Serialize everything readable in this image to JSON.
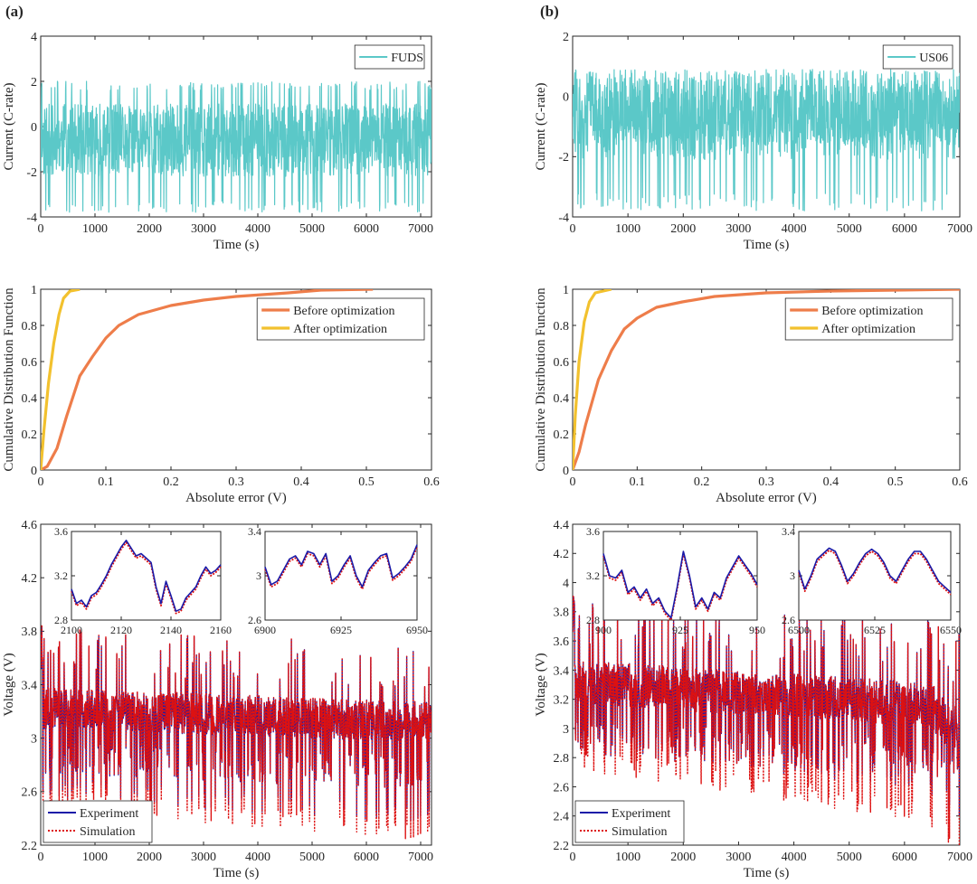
{
  "panel_labels": [
    "(a)",
    "(b)"
  ],
  "colors": {
    "current": "#5bc8c8",
    "before": "#ee7d4a",
    "after": "#f2c12e",
    "experiment": "#1a1aa8",
    "simulation": "#dd1111",
    "axis": "#262626"
  },
  "chart_data": [
    {
      "id": "a-current",
      "type": "line",
      "ylabel": "Current (C-rate)",
      "xlabel": "Time (s)",
      "xlim": [
        0,
        7200
      ],
      "ylim": [
        -4,
        4
      ],
      "xticks": [
        0,
        1000,
        2000,
        3000,
        4000,
        5000,
        6000,
        7000
      ],
      "yticks": [
        -4,
        -2,
        0,
        2,
        4
      ],
      "legend": "top-right",
      "series": [
        {
          "name": "FUDS",
          "profile": "FUDS",
          "range": [
            -3.8,
            2.0
          ],
          "mean": -0.25
        }
      ]
    },
    {
      "id": "b-current",
      "type": "line",
      "ylabel": "Current (C-rate)",
      "xlabel": "Time (s)",
      "xlim": [
        0,
        7000
      ],
      "ylim": [
        -4,
        2
      ],
      "xticks": [
        0,
        1000,
        2000,
        3000,
        4000,
        5000,
        6000,
        7000
      ],
      "yticks": [
        -4,
        -2,
        0,
        2
      ],
      "legend": "top-right",
      "series": [
        {
          "name": "US06",
          "profile": "US06",
          "range": [
            -3.8,
            0.9
          ],
          "mean": -0.5
        }
      ]
    },
    {
      "id": "a-cdf",
      "type": "line",
      "ylabel": "Cumulative Distribution Function",
      "xlabel": "Absolute error (V)",
      "xlim": [
        0,
        0.6
      ],
      "ylim": [
        0,
        1
      ],
      "xticks": [
        0,
        0.1,
        0.2,
        0.3,
        0.4,
        0.5,
        0.6
      ],
      "yticks": [
        0,
        0.2,
        0.4,
        0.6,
        0.8,
        1
      ],
      "legend": "top-right",
      "series": [
        {
          "name": "Before optimization",
          "points": [
            [
              0,
              0
            ],
            [
              0.01,
              0.02
            ],
            [
              0.025,
              0.12
            ],
            [
              0.04,
              0.3
            ],
            [
              0.06,
              0.52
            ],
            [
              0.08,
              0.63
            ],
            [
              0.1,
              0.73
            ],
            [
              0.12,
              0.8
            ],
            [
              0.15,
              0.86
            ],
            [
              0.2,
              0.91
            ],
            [
              0.25,
              0.94
            ],
            [
              0.3,
              0.96
            ],
            [
              0.38,
              0.98
            ],
            [
              0.43,
              0.995
            ],
            [
              0.51,
              1
            ]
          ]
        },
        {
          "name": "After optimization",
          "points": [
            [
              0,
              0
            ],
            [
              0.005,
              0.22
            ],
            [
              0.012,
              0.48
            ],
            [
              0.02,
              0.7
            ],
            [
              0.028,
              0.86
            ],
            [
              0.035,
              0.95
            ],
            [
              0.045,
              0.99
            ],
            [
              0.06,
              1
            ]
          ]
        }
      ]
    },
    {
      "id": "b-cdf",
      "type": "line",
      "ylabel": "Cumulative Distribution Function",
      "xlabel": "Absolute error (V)",
      "xlim": [
        0,
        0.6
      ],
      "ylim": [
        0,
        1
      ],
      "xticks": [
        0,
        0.1,
        0.2,
        0.3,
        0.4,
        0.5,
        0.6
      ],
      "yticks": [
        0,
        0.2,
        0.4,
        0.6,
        0.8,
        1
      ],
      "legend": "top-right",
      "series": [
        {
          "name": "Before optimization",
          "points": [
            [
              0,
              0
            ],
            [
              0.01,
              0.1
            ],
            [
              0.02,
              0.25
            ],
            [
              0.04,
              0.5
            ],
            [
              0.06,
              0.66
            ],
            [
              0.08,
              0.78
            ],
            [
              0.1,
              0.84
            ],
            [
              0.13,
              0.9
            ],
            [
              0.17,
              0.93
            ],
            [
              0.22,
              0.96
            ],
            [
              0.3,
              0.98
            ],
            [
              0.4,
              0.99
            ],
            [
              0.6,
              1
            ]
          ]
        },
        {
          "name": "After optimization",
          "points": [
            [
              0,
              0
            ],
            [
              0.004,
              0.3
            ],
            [
              0.01,
              0.6
            ],
            [
              0.018,
              0.82
            ],
            [
              0.026,
              0.93
            ],
            [
              0.035,
              0.98
            ],
            [
              0.06,
              1
            ]
          ]
        }
      ]
    },
    {
      "id": "a-voltage",
      "type": "line",
      "ylabel": "Voltage (V)",
      "xlabel": "Time (s)",
      "xlim": [
        0,
        7200
      ],
      "ylim": [
        2.2,
        4.6
      ],
      "xticks": [
        0,
        1000,
        2000,
        3000,
        4000,
        5000,
        6000,
        7000
      ],
      "yticks": [
        2.2,
        2.6,
        3,
        3.4,
        3.8,
        4.2,
        4.6
      ],
      "legend": "bottom-left",
      "series": [
        {
          "name": "Experiment",
          "profile": "FUDS",
          "upper": 3.32,
          "upper_end": 3.22,
          "lower": 2.55,
          "lower_end": 2.35
        },
        {
          "name": "Simulation",
          "profile": "FUDS",
          "upper": 3.36,
          "upper_end": 3.25,
          "lower": 2.5,
          "lower_end": 2.25
        }
      ],
      "insets": [
        {
          "xlim": [
            2100,
            2160
          ],
          "ylim": [
            2.8,
            3.6
          ],
          "xticks": [
            2100,
            2120,
            2140,
            2160
          ],
          "yticks": [
            2.8,
            3.2,
            3.6
          ],
          "points": [
            [
              2100,
              3.08
            ],
            [
              2102,
              2.95
            ],
            [
              2104,
              2.98
            ],
            [
              2106,
              2.92
            ],
            [
              2108,
              3.02
            ],
            [
              2110,
              3.05
            ],
            [
              2112,
              3.12
            ],
            [
              2114,
              3.2
            ],
            [
              2116,
              3.3
            ],
            [
              2118,
              3.38
            ],
            [
              2120,
              3.46
            ],
            [
              2122,
              3.52
            ],
            [
              2124,
              3.45
            ],
            [
              2126,
              3.38
            ],
            [
              2128,
              3.4
            ],
            [
              2130,
              3.36
            ],
            [
              2132,
              3.32
            ],
            [
              2134,
              3.1
            ],
            [
              2136,
              2.95
            ],
            [
              2138,
              3.15
            ],
            [
              2140,
              3.02
            ],
            [
              2142,
              2.88
            ],
            [
              2144,
              2.9
            ],
            [
              2146,
              3.0
            ],
            [
              2148,
              3.05
            ],
            [
              2150,
              3.1
            ],
            [
              2152,
              3.2
            ],
            [
              2154,
              3.28
            ],
            [
              2156,
              3.22
            ],
            [
              2158,
              3.25
            ],
            [
              2160,
              3.3
            ]
          ]
        },
        {
          "xlim": [
            6900,
            6950
          ],
          "ylim": [
            2.6,
            3.4
          ],
          "xticks": [
            6900,
            6925,
            6950
          ],
          "yticks": [
            2.6,
            3,
            3.4
          ],
          "points": [
            [
              6900,
              3.08
            ],
            [
              6902,
              2.92
            ],
            [
              6904,
              2.95
            ],
            [
              6906,
              3.05
            ],
            [
              6908,
              3.15
            ],
            [
              6910,
              3.18
            ],
            [
              6912,
              3.1
            ],
            [
              6914,
              3.22
            ],
            [
              6916,
              3.2
            ],
            [
              6918,
              3.1
            ],
            [
              6920,
              3.2
            ],
            [
              6922,
              2.95
            ],
            [
              6924,
              3.0
            ],
            [
              6926,
              3.1
            ],
            [
              6928,
              3.18
            ],
            [
              6930,
              3.0
            ],
            [
              6932,
              2.9
            ],
            [
              6934,
              3.05
            ],
            [
              6936,
              3.12
            ],
            [
              6938,
              3.18
            ],
            [
              6940,
              3.2
            ],
            [
              6942,
              2.98
            ],
            [
              6944,
              3.02
            ],
            [
              6946,
              3.08
            ],
            [
              6948,
              3.15
            ],
            [
              6950,
              3.28
            ]
          ]
        }
      ]
    },
    {
      "id": "b-voltage",
      "type": "line",
      "ylabel": "Voltage (V)",
      "xlabel": "Time (s)",
      "xlim": [
        0,
        7000
      ],
      "ylim": [
        2.2,
        4.4
      ],
      "xticks": [
        0,
        1000,
        2000,
        3000,
        4000,
        5000,
        6000,
        7000
      ],
      "yticks": [
        2.2,
        2.4,
        2.6,
        2.8,
        3,
        3.2,
        3.4,
        3.6,
        3.8,
        4,
        4.2,
        4.4
      ],
      "legend": "bottom-left",
      "series": [
        {
          "name": "Experiment",
          "profile": "US06",
          "upper": 3.42,
          "upper_end": 3.25,
          "lower": 2.85,
          "lower_end": 2.55
        },
        {
          "name": "Simulation",
          "profile": "US06",
          "upper": 3.45,
          "upper_end": 3.28,
          "lower": 2.75,
          "lower_end": 2.35
        }
      ],
      "insets": [
        {
          "xlim": [
            900,
            950
          ],
          "ylim": [
            2.8,
            3.6
          ],
          "xticks": [
            900,
            925,
            950
          ],
          "yticks": [
            2.8,
            3.2,
            3.6
          ],
          "points": [
            [
              900,
              3.4
            ],
            [
              902,
              3.2
            ],
            [
              904,
              3.18
            ],
            [
              906,
              3.25
            ],
            [
              908,
              3.05
            ],
            [
              910,
              3.1
            ],
            [
              912,
              3.0
            ],
            [
              914,
              3.08
            ],
            [
              916,
              2.95
            ],
            [
              918,
              3.0
            ],
            [
              920,
              2.88
            ],
            [
              922,
              2.82
            ],
            [
              924,
              3.1
            ],
            [
              926,
              3.42
            ],
            [
              928,
              3.2
            ],
            [
              930,
              2.92
            ],
            [
              932,
              3.0
            ],
            [
              934,
              2.9
            ],
            [
              936,
              3.05
            ],
            [
              938,
              3.0
            ],
            [
              940,
              3.18
            ],
            [
              942,
              3.28
            ],
            [
              944,
              3.38
            ],
            [
              946,
              3.3
            ],
            [
              948,
              3.22
            ],
            [
              950,
              3.12
            ]
          ]
        },
        {
          "xlim": [
            6500,
            6550
          ],
          "ylim": [
            2.6,
            3.4
          ],
          "xticks": [
            6500,
            6525,
            6550
          ],
          "yticks": [
            2.6,
            3,
            3.4
          ],
          "points": [
            [
              6500,
              3.05
            ],
            [
              6502,
              2.88
            ],
            [
              6504,
              3.0
            ],
            [
              6506,
              3.15
            ],
            [
              6508,
              3.2
            ],
            [
              6510,
              3.25
            ],
            [
              6512,
              3.22
            ],
            [
              6514,
              3.1
            ],
            [
              6516,
              2.95
            ],
            [
              6518,
              3.02
            ],
            [
              6520,
              3.12
            ],
            [
              6522,
              3.2
            ],
            [
              6524,
              3.24
            ],
            [
              6526,
              3.2
            ],
            [
              6528,
              3.12
            ],
            [
              6530,
              3.0
            ],
            [
              6532,
              2.95
            ],
            [
              6534,
              3.05
            ],
            [
              6536,
              3.15
            ],
            [
              6538,
              3.22
            ],
            [
              6540,
              3.22
            ],
            [
              6542,
              3.15
            ],
            [
              6544,
              3.05
            ],
            [
              6546,
              2.95
            ],
            [
              6548,
              2.9
            ],
            [
              6550,
              2.85
            ]
          ]
        }
      ]
    }
  ]
}
